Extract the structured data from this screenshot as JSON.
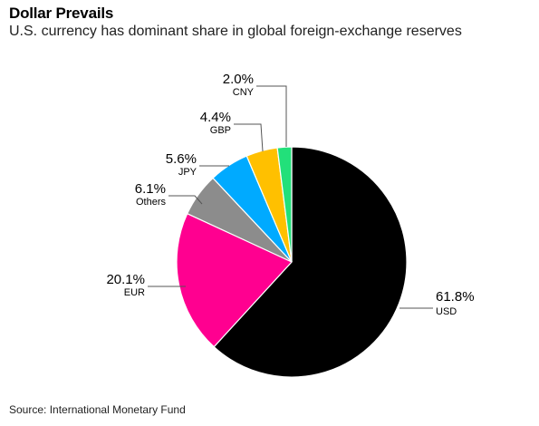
{
  "header": {
    "title": "Dollar Prevails",
    "subtitle": "U.S. currency has dominant share in global foreign-exchange reserves"
  },
  "footer": {
    "source": "Source: International Monetary Fund"
  },
  "chart_data": {
    "type": "pie",
    "title": "Dollar Prevails",
    "subtitle": "U.S. currency has dominant share in global foreign-exchange reserves",
    "start": "12 o'clock",
    "direction": "clockwise",
    "slices": [
      {
        "name": "USD",
        "value": 61.8,
        "label": "61.8%",
        "color": "#000000"
      },
      {
        "name": "EUR",
        "value": 20.1,
        "label": "20.1%",
        "color": "#ff0090"
      },
      {
        "name": "Others",
        "value": 6.1,
        "label": "6.1%",
        "color": "#8c8c8c"
      },
      {
        "name": "JPY",
        "value": 5.6,
        "label": "5.6%",
        "color": "#00aaff"
      },
      {
        "name": "GBP",
        "value": 4.4,
        "label": "4.4%",
        "color": "#ffc000"
      },
      {
        "name": "CNY",
        "value": 2.0,
        "label": "2.0%",
        "color": "#22e07a"
      }
    ]
  }
}
